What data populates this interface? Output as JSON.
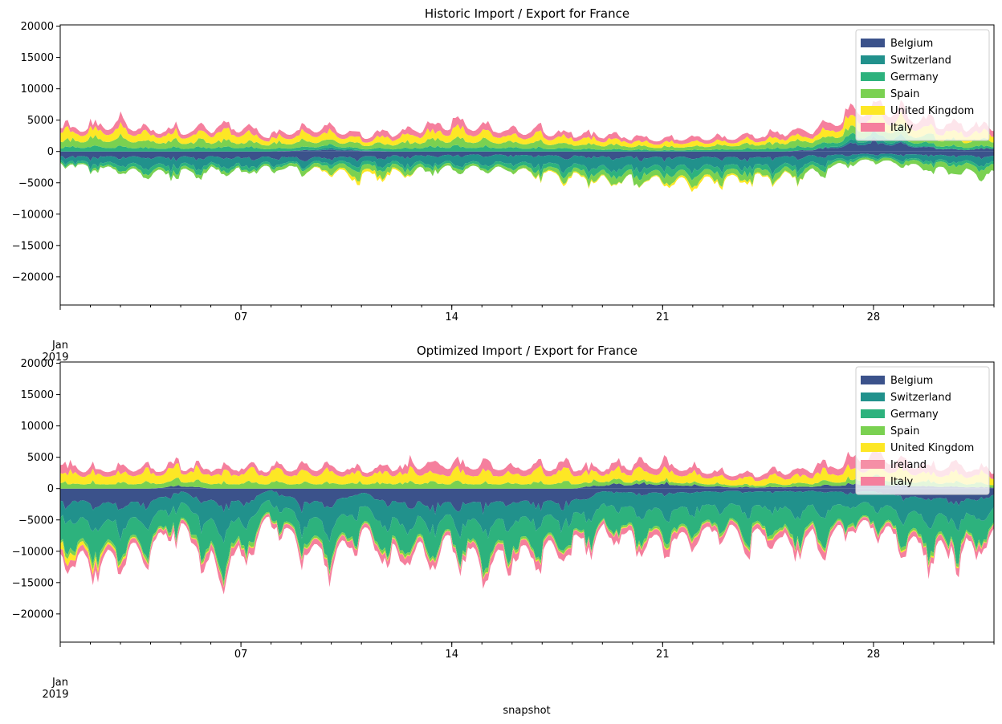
{
  "figure": {
    "xlabel": "snapshot"
  },
  "chart_data": [
    {
      "type": "area",
      "title": "Historic Import / Export for France",
      "xlabel": "",
      "ylabel": "",
      "x_range": [
        "2019-01-01",
        "2020-01-01"
      ],
      "ylim": [
        -24500,
        20200
      ],
      "y_ticks": [
        -20000,
        -15000,
        -10000,
        -5000,
        0,
        5000,
        10000,
        15000,
        20000
      ],
      "x_ticks": [
        {
          "day": 1,
          "label": "Jan",
          "sublabel": "2019"
        },
        {
          "day": 7,
          "label": "07"
        },
        {
          "day": 14,
          "label": "14"
        },
        {
          "day": 21,
          "label": "21"
        },
        {
          "day": 28,
          "label": "28"
        }
      ],
      "legend_position": "upper-right",
      "grid": false,
      "series": [
        {
          "name": "Belgium",
          "color": "#3b528b",
          "positive_values": [
            0,
            0,
            0,
            0,
            0,
            0,
            0,
            0,
            200,
            300,
            100,
            0,
            0,
            0,
            0,
            0,
            0,
            0,
            0,
            0,
            0,
            0,
            0,
            0,
            0,
            300,
            1000,
            1800,
            1200,
            600,
            300,
            600
          ],
          "negative_values": [
            -1000,
            -1200,
            -1100,
            -1300,
            -1200,
            -1100,
            -1300,
            -1200,
            -1400,
            -1300,
            -1200,
            -1000,
            -900,
            -800,
            -700,
            -800,
            -900,
            -1000,
            -1100,
            -1200,
            -1300,
            -1200,
            -1300,
            -1400,
            -1100,
            -900,
            -700,
            -500,
            -600,
            -800,
            -900,
            -1000
          ]
        },
        {
          "name": "Switzerland",
          "color": "#21918c",
          "positive_values": [
            0,
            0,
            0,
            0,
            0,
            0,
            0,
            0,
            0,
            400,
            100,
            0,
            0,
            0,
            0,
            0,
            0,
            0,
            0,
            0,
            0,
            0,
            0,
            0,
            0,
            0,
            400,
            700,
            300,
            100,
            0,
            0
          ],
          "negative_values": [
            -800,
            -1200,
            -1500,
            -1700,
            -1600,
            -1400,
            -1500,
            -1200,
            -1000,
            -900,
            -1100,
            -1300,
            -1400,
            -1500,
            -1700,
            -1600,
            -1800,
            -1900,
            -2100,
            -2000,
            -1900,
            -2000,
            -1800,
            -1700,
            -1600,
            -1500,
            -800,
            -500,
            -900,
            -1100,
            -1200,
            -1300
          ]
        },
        {
          "name": "Germany",
          "color": "#2db27d",
          "positive_values": [
            700,
            900,
            800,
            700,
            600,
            700,
            800,
            500,
            600,
            500,
            300,
            500,
            700,
            900,
            800,
            700,
            600,
            500,
            400,
            300,
            200,
            300,
            400,
            500,
            600,
            700,
            900,
            1100,
            800,
            600,
            500,
            400
          ],
          "negative_values": [
            -400,
            -600,
            -800,
            -900,
            -800,
            -600,
            -700,
            -500,
            -400,
            -600,
            -800,
            -700,
            -600,
            -500,
            -600,
            -800,
            -900,
            -1000,
            -1100,
            -1200,
            -1300,
            -1200,
            -1100,
            -1000,
            -900,
            -800,
            -500,
            -300,
            -400,
            -500,
            -600,
            -700
          ]
        },
        {
          "name": "Spain",
          "color": "#7ad151",
          "positive_values": [
            1200,
            1400,
            1500,
            1300,
            1200,
            1100,
            1000,
            900,
            1100,
            1000,
            800,
            900,
            1100,
            1300,
            1200,
            1100,
            1000,
            900,
            800,
            700,
            600,
            700,
            800,
            900,
            1000,
            1100,
            1300,
            1600,
            1500,
            1300,
            1200,
            1100
          ],
          "negative_values": [
            -200,
            -300,
            -500,
            -600,
            -700,
            -500,
            -400,
            -500,
            -800,
            -1000,
            -1200,
            -900,
            -700,
            -600,
            -500,
            -600,
            -800,
            -900,
            -1100,
            -1200,
            -1300,
            -1400,
            -1200,
            -1100,
            -1000,
            -900,
            -600,
            -400,
            -800,
            -1200,
            -1400,
            -1500
          ]
        },
        {
          "name": "United Kingdom",
          "color": "#fde725",
          "positive_values": [
            1500,
            1600,
            1800,
            1400,
            1300,
            1600,
            1700,
            900,
            1500,
            1400,
            800,
            1100,
            1400,
            1700,
            1600,
            1300,
            1200,
            1100,
            1000,
            900,
            800,
            900,
            700,
            800,
            900,
            1000,
            1600,
            2000,
            1800,
            1500,
            1400,
            1300
          ],
          "negative_values": [
            0,
            0,
            0,
            0,
            0,
            0,
            0,
            0,
            0,
            -300,
            -700,
            -400,
            0,
            0,
            0,
            0,
            -200,
            -300,
            -200,
            0,
            -300,
            -600,
            -400,
            -300,
            -200,
            0,
            0,
            0,
            0,
            0,
            0,
            0
          ]
        },
        {
          "name": "Italy",
          "color": "#f57f9d",
          "positive_values": [
            900,
            1100,
            1300,
            1000,
            900,
            1000,
            1100,
            800,
            1200,
            1100,
            900,
            1000,
            1200,
            1400,
            1300,
            1100,
            1000,
            900,
            900,
            800,
            800,
            900,
            800,
            900,
            1000,
            1100,
            1500,
            2200,
            1800,
            1500,
            1400,
            1300
          ],
          "negative_values": [
            0,
            0,
            0,
            0,
            0,
            0,
            0,
            0,
            0,
            0,
            0,
            0,
            0,
            0,
            0,
            0,
            0,
            0,
            0,
            0,
            0,
            0,
            0,
            0,
            0,
            0,
            0,
            0,
            0,
            0,
            0,
            0
          ]
        }
      ]
    },
    {
      "type": "area",
      "title": "Optimized Import / Export for France",
      "xlabel": "snapshot",
      "ylabel": "",
      "x_range": [
        "2019-01-01",
        "2020-01-01"
      ],
      "ylim": [
        -24500,
        20200
      ],
      "y_ticks": [
        -20000,
        -15000,
        -10000,
        -5000,
        0,
        5000,
        10000,
        15000,
        20000
      ],
      "x_ticks": [
        {
          "day": 1,
          "label": "Jan",
          "sublabel": "2019"
        },
        {
          "day": 7,
          "label": "07"
        },
        {
          "day": 14,
          "label": "14"
        },
        {
          "day": 21,
          "label": "21"
        },
        {
          "day": 28,
          "label": "28"
        }
      ],
      "legend_position": "upper-right",
      "grid": false,
      "series": [
        {
          "name": "Belgium",
          "color": "#3b528b",
          "positive_values": [
            0,
            0,
            0,
            0,
            500,
            0,
            0,
            0,
            0,
            0,
            0,
            0,
            0,
            0,
            0,
            0,
            0,
            0,
            600,
            800,
            900,
            600,
            300,
            200,
            300,
            400,
            700,
            1000,
            600,
            400,
            300,
            200
          ],
          "negative_values": [
            -2500,
            -3000,
            -3500,
            -2800,
            -600,
            -2700,
            -2900,
            -300,
            -2900,
            -3100,
            -800,
            -3000,
            -3100,
            -3300,
            -3200,
            -3000,
            -2900,
            -2800,
            -600,
            -900,
            -1000,
            -800,
            -500,
            -700,
            -600,
            -500,
            -800,
            -600,
            -1800,
            -2200,
            -2500,
            -1500
          ]
        },
        {
          "name": "Switzerland",
          "color": "#21918c",
          "positive_values": [
            0,
            0,
            0,
            0,
            0,
            0,
            0,
            0,
            0,
            0,
            0,
            0,
            0,
            0,
            0,
            0,
            0,
            0,
            0,
            0,
            0,
            0,
            0,
            0,
            0,
            0,
            0,
            0,
            0,
            0,
            0,
            0
          ],
          "negative_values": [
            -3000,
            -4500,
            -4000,
            -3500,
            -2500,
            -4500,
            -4000,
            -2000,
            -3500,
            -4500,
            -3000,
            -4000,
            -3500,
            -3000,
            -4500,
            -4000,
            -3500,
            -3200,
            -2800,
            -3500,
            -3800,
            -3400,
            -3000,
            -3300,
            -3600,
            -3400,
            -3000,
            -2500,
            -3400,
            -3800,
            -3500,
            -3000
          ]
        },
        {
          "name": "Germany",
          "color": "#2db27d",
          "positive_values": [
            0,
            0,
            0,
            0,
            0,
            0,
            0,
            0,
            0,
            0,
            0,
            0,
            0,
            0,
            0,
            0,
            0,
            0,
            0,
            0,
            0,
            0,
            0,
            0,
            0,
            0,
            0,
            0,
            0,
            0,
            0,
            0
          ],
          "negative_values": [
            -4000,
            -5500,
            -4500,
            -4000,
            -3500,
            -5500,
            -4500,
            -2500,
            -4000,
            -5000,
            -3500,
            -4500,
            -4000,
            -3500,
            -5500,
            -5000,
            -4500,
            -4000,
            -3500,
            -4000,
            -4500,
            -4000,
            -3500,
            -3800,
            -4200,
            -4000,
            -3500,
            -3000,
            -4000,
            -4500,
            -4200,
            -3500
          ]
        },
        {
          "name": "Spain",
          "color": "#7ad151",
          "positive_values": [
            1000,
            1000,
            1000,
            1000,
            1000,
            1000,
            1000,
            1000,
            1000,
            1000,
            1000,
            1000,
            1000,
            1000,
            1000,
            1000,
            1000,
            1000,
            800,
            600,
            500,
            600,
            500,
            400,
            500,
            600,
            800,
            1000,
            900,
            800,
            700,
            600
          ],
          "negative_values": [
            -500,
            -800,
            -600,
            -500,
            -400,
            -600,
            -700,
            -300,
            -500,
            -600,
            -400,
            -500,
            -500,
            -400,
            -600,
            -600,
            -500,
            -400,
            -300,
            -500,
            -600,
            -500,
            -400,
            -500,
            -600,
            -500,
            -400,
            -300,
            -500,
            -600,
            -500,
            -400
          ]
        },
        {
          "name": "United Kingdom",
          "color": "#fde725",
          "positive_values": [
            2000,
            1800,
            2000,
            2000,
            2000,
            2000,
            2000,
            2000,
            2000,
            2000,
            1800,
            2000,
            2000,
            2000,
            2000,
            2000,
            2000,
            2000,
            1500,
            1800,
            1900,
            1600,
            1300,
            1200,
            1300,
            1500,
            1800,
            2200,
            1900,
            1700,
            1600,
            1500
          ],
          "negative_values": [
            -1200,
            -800,
            -300,
            -200,
            -100,
            -200,
            -200,
            -100,
            -200,
            -200,
            -100,
            -200,
            -200,
            -100,
            -200,
            -200,
            -200,
            -100,
            -100,
            -200,
            -200,
            -200,
            -100,
            -200,
            -200,
            -200,
            -100,
            -100,
            -200,
            -200,
            -200,
            -100
          ]
        },
        {
          "name": "Ireland",
          "color": "#f58fa6",
          "positive_values": [
            0,
            0,
            0,
            0,
            0,
            0,
            0,
            0,
            0,
            0,
            0,
            0,
            0,
            0,
            0,
            0,
            0,
            0,
            0,
            0,
            0,
            0,
            0,
            0,
            0,
            0,
            0,
            0,
            0,
            0,
            0,
            0
          ],
          "negative_values": [
            0,
            0,
            0,
            0,
            0,
            0,
            0,
            0,
            0,
            0,
            0,
            0,
            0,
            0,
            0,
            0,
            0,
            0,
            0,
            0,
            0,
            0,
            0,
            0,
            0,
            0,
            0,
            0,
            0,
            0,
            0,
            0
          ]
        },
        {
          "name": "Italy",
          "color": "#f57f9d",
          "positive_values": [
            1500,
            1000,
            1200,
            1000,
            800,
            1000,
            1100,
            900,
            1300,
            1200,
            900,
            1200,
            1500,
            1800,
            1600,
            1400,
            1300,
            1200,
            1000,
            1300,
            1500,
            1200,
            1000,
            900,
            1100,
            1300,
            1600,
            2500,
            1800,
            1500,
            1400,
            1200
          ],
          "negative_values": [
            -1000,
            -1500,
            -1200,
            -1000,
            -800,
            -1500,
            -1300,
            -600,
            -1200,
            -1500,
            -900,
            -1300,
            -1100,
            -900,
            -1600,
            -1500,
            -1300,
            -1100,
            -900,
            -1200,
            -1400,
            -1200,
            -1000,
            -1100,
            -1300,
            -1200,
            -900,
            -700,
            -1200,
            -1400,
            -1300,
            -1000
          ]
        }
      ]
    }
  ]
}
